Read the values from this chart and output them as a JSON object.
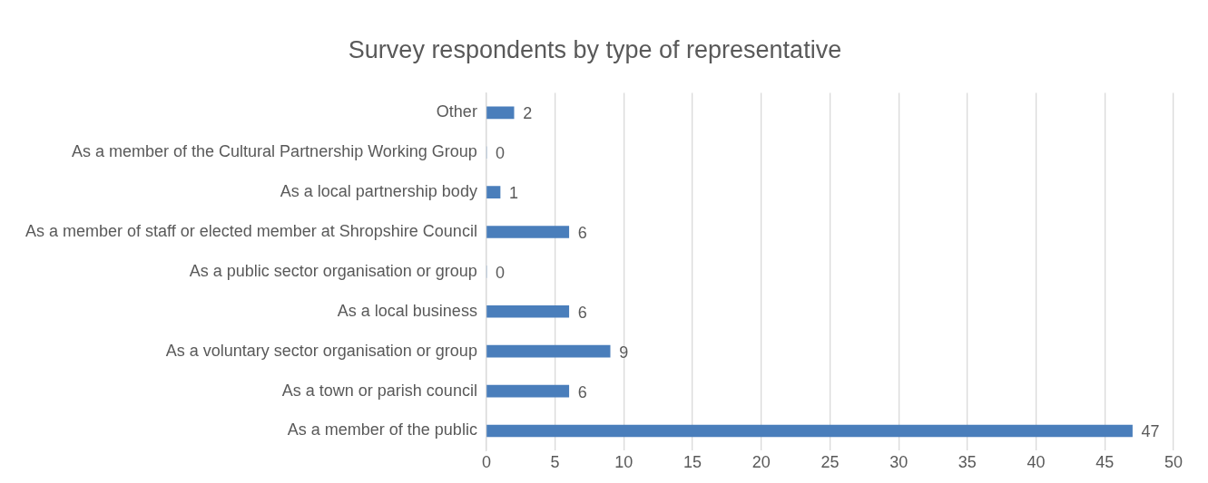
{
  "chart_data": {
    "type": "bar",
    "orientation": "horizontal",
    "title": "Survey respondents by type of representative",
    "categories": [
      "Other",
      "As a member of the Cultural Partnership Working Group",
      "As a local partnership body",
      "As a member of staff or elected member at Shropshire Council",
      "As a public sector organisation or group",
      "As a local business",
      "As a voluntary sector organisation or group",
      "As a town or parish council",
      "As a member of the public"
    ],
    "values": [
      2,
      0,
      1,
      6,
      0,
      6,
      9,
      6,
      47
    ],
    "color": "#4a7ebb",
    "xlim": [
      0,
      50
    ],
    "xticks": [
      0,
      5,
      10,
      15,
      20,
      25,
      30,
      35,
      40,
      45,
      50
    ],
    "grid": "x",
    "data_labels": true,
    "legend": false
  }
}
